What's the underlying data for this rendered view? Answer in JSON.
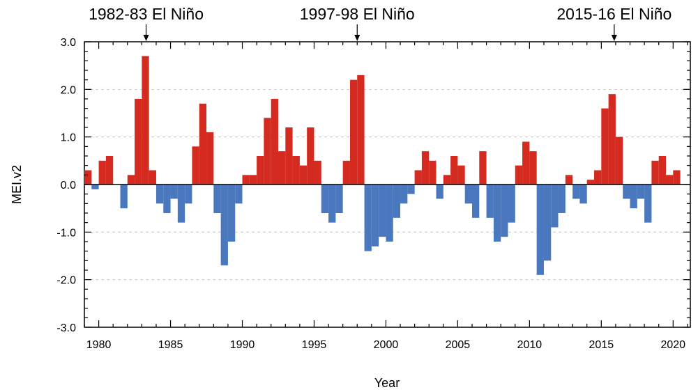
{
  "chart_data": {
    "type": "bar",
    "title": "",
    "xlabel": "Year",
    "ylabel": "MEI.v2",
    "xlim": [
      1979.0,
      2021.2
    ],
    "ylim": [
      -3.0,
      3.0
    ],
    "x_ticks": [
      1980,
      1985,
      1990,
      1995,
      2000,
      2005,
      2010,
      2015,
      2020
    ],
    "x_tick_labels": [
      "1980",
      "1985",
      "1990",
      "1995",
      "2000",
      "2005",
      "2010",
      "2015",
      "2020"
    ],
    "y_ticks": [
      -3.0,
      -2.0,
      -1.0,
      0.0,
      1.0,
      2.0,
      3.0
    ],
    "y_tick_labels": [
      "-3.0",
      "-2.0",
      "-1.0",
      "0.0",
      "1.0",
      "2.0",
      "3.0"
    ],
    "grid": "horizontal-dashed",
    "colors": {
      "positive": "#d42a20",
      "negative": "#4a78be"
    },
    "annotations": [
      {
        "text": "1982-83 El Niño",
        "x": 1983.3
      },
      {
        "text": "1997-98 El Niño",
        "x": 1998.0
      },
      {
        "text": "2015-16 El Niño",
        "x": 2015.9
      }
    ],
    "series": [
      {
        "x": [
          1979.0,
          1979.5,
          1980.0,
          1980.5,
          1981.0,
          1981.5,
          1982.0,
          1982.5,
          1983.0,
          1983.5,
          1984.0,
          1984.5,
          1985.0,
          1985.5,
          1986.0,
          1986.5,
          1987.0,
          1987.5,
          1988.0,
          1988.5,
          1989.0,
          1989.5,
          1990.0,
          1990.5,
          1991.0,
          1991.5,
          1992.0,
          1992.5,
          1993.0,
          1993.5,
          1994.0,
          1994.5,
          1995.0,
          1995.5,
          1996.0,
          1996.5,
          1997.0,
          1997.5,
          1998.0,
          1998.5,
          1999.0,
          1999.5,
          2000.0,
          2000.5,
          2001.0,
          2001.5,
          2002.0,
          2002.5,
          2003.0,
          2003.5,
          2004.0,
          2004.5,
          2005.0,
          2005.5,
          2006.0,
          2006.5,
          2007.0,
          2007.5,
          2008.0,
          2008.5,
          2009.0,
          2009.5,
          2010.0,
          2010.5,
          2011.0,
          2011.5,
          2012.0,
          2012.5,
          2013.0,
          2013.5,
          2014.0,
          2014.5,
          2015.0,
          2015.5,
          2016.0,
          2016.5,
          2017.0,
          2017.5,
          2018.0,
          2018.5,
          2019.0,
          2019.5,
          2020.0
        ],
        "values": [
          0.3,
          -0.1,
          0.5,
          0.6,
          0.0,
          -0.5,
          0.2,
          1.8,
          2.7,
          0.3,
          -0.4,
          -0.6,
          -0.3,
          -0.8,
          -0.4,
          0.8,
          1.7,
          1.1,
          -0.6,
          -1.7,
          -1.2,
          -0.4,
          0.2,
          0.2,
          0.6,
          1.4,
          1.8,
          0.7,
          1.2,
          0.6,
          0.4,
          1.2,
          0.5,
          -0.6,
          -0.8,
          -0.6,
          0.5,
          2.2,
          2.3,
          -1.4,
          -1.3,
          -1.1,
          -1.2,
          -0.7,
          -0.4,
          -0.2,
          0.3,
          0.7,
          0.5,
          -0.3,
          0.2,
          0.6,
          0.4,
          -0.4,
          -0.7,
          0.7,
          -0.7,
          -1.2,
          -1.1,
          -0.8,
          0.4,
          0.9,
          0.7,
          -1.9,
          -1.6,
          -0.9,
          -0.6,
          0.2,
          -0.3,
          -0.4,
          0.1,
          0.3,
          1.6,
          1.9,
          1.0,
          -0.3,
          -0.5,
          -0.3,
          -0.8,
          0.5,
          0.6,
          0.2,
          0.3
        ]
      }
    ]
  }
}
